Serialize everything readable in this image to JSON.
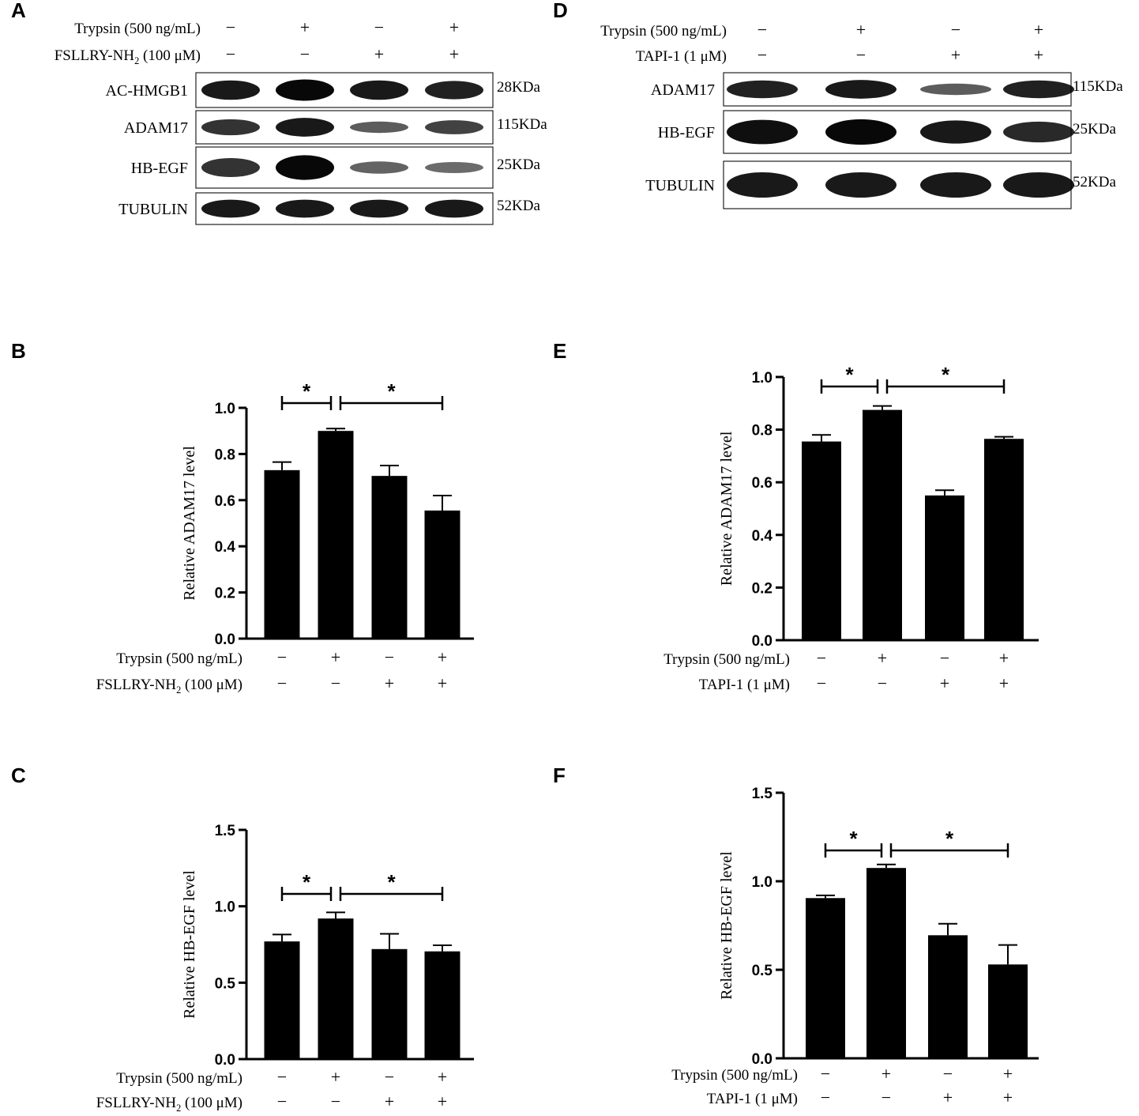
{
  "panels": {
    "A": {
      "letter": "A",
      "treatments": [
        {
          "label": "Trypsin (500 ng/mL)",
          "signs": [
            "−",
            "+",
            "−",
            "+"
          ]
        },
        {
          "label_main": "FSLLRY-NH",
          "label_sub": "2",
          "label_tail": " (100 μM)",
          "signs": [
            "−",
            "−",
            "+",
            "+"
          ]
        }
      ],
      "blots": [
        {
          "name": "AC-HMGB1",
          "kda": "28KDa",
          "intensity": [
            0.85,
            0.95,
            0.85,
            0.8
          ]
        },
        {
          "name": "ADAM17",
          "kda": "115KDa",
          "intensity": [
            0.7,
            0.85,
            0.45,
            0.6
          ]
        },
        {
          "name": "HB-EGF",
          "kda": "25KDa",
          "intensity": [
            0.7,
            0.95,
            0.4,
            0.35
          ]
        },
        {
          "name": "TUBULIN",
          "kda": "52KDa",
          "intensity": [
            0.85,
            0.85,
            0.85,
            0.85
          ]
        }
      ]
    },
    "D": {
      "letter": "D",
      "treatments": [
        {
          "label": "Trypsin (500 ng/mL)",
          "signs": [
            "−",
            "+",
            "−",
            "+"
          ]
        },
        {
          "label": "TAPI-1 (1 μM)",
          "signs": [
            "−",
            "−",
            "+",
            "+"
          ]
        }
      ],
      "blots": [
        {
          "name": "ADAM17",
          "kda": "115KDa",
          "intensity": [
            0.8,
            0.85,
            0.45,
            0.8
          ]
        },
        {
          "name": "HB-EGF",
          "kda": "25KDa",
          "intensity": [
            0.9,
            0.95,
            0.85,
            0.75
          ]
        },
        {
          "name": "TUBULIN",
          "kda": "52KDa",
          "intensity": [
            0.85,
            0.85,
            0.85,
            0.85
          ]
        }
      ]
    }
  },
  "chart_data": [
    {
      "panel": "B",
      "type": "bar",
      "ylabel": "Relative ADAM17 level",
      "ylim": [
        0,
        1.0
      ],
      "yticks": [
        "0.0",
        "0.2",
        "0.4",
        "0.6",
        "0.8",
        "1.0"
      ],
      "ytick_values": [
        0,
        0.2,
        0.4,
        0.6,
        0.8,
        1.0
      ],
      "values": [
        0.73,
        0.9,
        0.705,
        0.555
      ],
      "errors": [
        0.035,
        0.01,
        0.045,
        0.065
      ],
      "significance": [
        "*",
        "*"
      ],
      "treatments": [
        {
          "label": "Trypsin (500 ng/mL)",
          "signs": [
            "−",
            "+",
            "−",
            "+"
          ]
        },
        {
          "label_main": "FSLLRY-NH",
          "label_sub": "2",
          "label_tail": " (100 μM)",
          "signs": [
            "−",
            "−",
            "+",
            "+"
          ]
        }
      ]
    },
    {
      "panel": "C",
      "type": "bar",
      "ylabel": "Relative HB-EGF level",
      "ylim": [
        0,
        1.5
      ],
      "yticks": [
        "0.0",
        "0.5",
        "1.0",
        "1.5"
      ],
      "ytick_values": [
        0,
        0.5,
        1.0,
        1.5
      ],
      "values": [
        0.77,
        0.92,
        0.72,
        0.705
      ],
      "errors": [
        0.045,
        0.04,
        0.1,
        0.04
      ],
      "significance": [
        "*",
        "*"
      ],
      "treatments": [
        {
          "label": "Trypsin (500 ng/mL)",
          "signs": [
            "−",
            "+",
            "−",
            "+"
          ]
        },
        {
          "label_main": "FSLLRY-NH",
          "label_sub": "2",
          "label_tail": " (100 μM)",
          "signs": [
            "−",
            "−",
            "+",
            "+"
          ]
        }
      ]
    },
    {
      "panel": "E",
      "type": "bar",
      "ylabel": "Relative ADAM17 level",
      "ylim": [
        0,
        1.0
      ],
      "yticks": [
        "0.0",
        "0.2",
        "0.4",
        "0.6",
        "0.8",
        "1.0"
      ],
      "ytick_values": [
        0,
        0.2,
        0.4,
        0.6,
        0.8,
        1.0
      ],
      "values": [
        0.755,
        0.875,
        0.55,
        0.765
      ],
      "errors": [
        0.025,
        0.015,
        0.02,
        0.008
      ],
      "significance": [
        "*",
        "*"
      ],
      "treatments": [
        {
          "label": "Trypsin (500 ng/mL)",
          "signs": [
            "−",
            "+",
            "−",
            "+"
          ]
        },
        {
          "label": "TAPI-1 (1 μM)",
          "signs": [
            "−",
            "−",
            "+",
            "+"
          ]
        }
      ]
    },
    {
      "panel": "F",
      "type": "bar",
      "ylabel": "Relative HB-EGF level",
      "ylim": [
        0,
        1.5
      ],
      "yticks": [
        "0.0",
        "0.5",
        "1.0",
        "1.5"
      ],
      "ytick_values": [
        0,
        0.5,
        1.0,
        1.5
      ],
      "values": [
        0.905,
        1.075,
        0.695,
        0.53
      ],
      "errors": [
        0.015,
        0.02,
        0.065,
        0.11
      ],
      "significance": [
        "*",
        "*"
      ],
      "treatments": [
        {
          "label": "Trypsin (500 ng/mL)",
          "signs": [
            "−",
            "+",
            "−",
            "+"
          ]
        },
        {
          "label": "TAPI-1 (1 μM)",
          "signs": [
            "−",
            "−",
            "+",
            "+"
          ]
        }
      ]
    }
  ]
}
